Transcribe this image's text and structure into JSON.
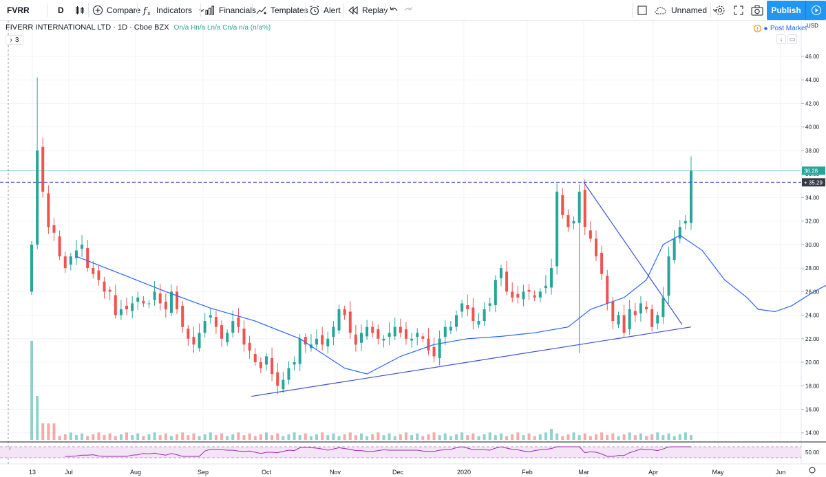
{
  "toolbar": {
    "symbol": "FVRR",
    "interval": "D",
    "compare_label": "Compare",
    "indicators_label": "Indicators",
    "financials_label": "Financials",
    "templates_label": "Templates",
    "alert_label": "Alert",
    "replay_label": "Replay",
    "layout_name": "Unnamed",
    "publish_label": "Publish"
  },
  "legend": {
    "title": "FIVERR INTERNATIONAL LTD · 1D · Cboe BZX",
    "ohlc": "On/a  Hn/a  Ln/a  Cn/a  n/a (n/a%)",
    "collapsed_count": "3",
    "post_market": "Post Market"
  },
  "colors": {
    "up": "#26a69a",
    "down": "#ef5350",
    "ma": "#2962ff",
    "trendline": "#3f51d6",
    "rsi": "#9c27b0",
    "rsi_band": "#f3e5f5"
  },
  "chart_data": {
    "type": "candlestick",
    "y_unit": "USD",
    "y_ticks": [
      14,
      16,
      18,
      20,
      22,
      24,
      26,
      28,
      30,
      32,
      34,
      36,
      38,
      40,
      42,
      44,
      46
    ],
    "ylim": [
      13.4,
      47.4
    ],
    "x_labels": [
      "13",
      "Jul",
      "Aug",
      "Sep",
      "Oct",
      "Nov",
      "Dec",
      "2020",
      "Feb",
      "Mar",
      "Apr",
      "May",
      "Jun"
    ],
    "last_price": "36.28",
    "crosshair_price": "35.29",
    "rsi_label": "50.00",
    "close_series": [
      30.0,
      38.0,
      34.5,
      31.5,
      31.0,
      29.0,
      28.0,
      29.0,
      29.5,
      30.0,
      28.0,
      27.5,
      27.0,
      26.0,
      26.0,
      24.0,
      24.5,
      24.5,
      25.0,
      25.5,
      25.0,
      25.0,
      26.0,
      25.0,
      24.5,
      26.0,
      24.5,
      23.0,
      22.0,
      21.5,
      22.5,
      23.5,
      24.0,
      23.0,
      22.0,
      22.5,
      23.5,
      23.0,
      21.5,
      21.0,
      20.0,
      19.5,
      20.5,
      19.0,
      18.0,
      18.5,
      19.5,
      20.0,
      22.0,
      21.5,
      21.5,
      22.0,
      21.5,
      22.0,
      23.0,
      24.5,
      24.0,
      22.5,
      21.5,
      22.5,
      23.0,
      22.5,
      22.0,
      22.0,
      22.5,
      23.0,
      22.5,
      22.0,
      22.0,
      22.5,
      22.0,
      21.0,
      20.5,
      22.0,
      23.0,
      23.0,
      24.0,
      25.0,
      24.5,
      23.5,
      23.5,
      24.5,
      25.0,
      27.0,
      28.0,
      26.0,
      25.5,
      25.5,
      26.0,
      26.0,
      25.5,
      26.0,
      26.5,
      28.0,
      34.5,
      32.5,
      31.5,
      32.0,
      34.5,
      31.5,
      30.5,
      29.0,
      27.5,
      25.0,
      23.5,
      24.0,
      22.5,
      24.5,
      24.0,
      25.0,
      24.5,
      23.0,
      24.0,
      25.5,
      29.0,
      30.5,
      31.5,
      32.0,
      36.28
    ],
    "ma_points": [
      [
        8,
        29.0
      ],
      [
        16,
        27.5
      ],
      [
        24,
        26.0
      ],
      [
        32,
        24.6
      ],
      [
        40,
        23.5
      ],
      [
        48,
        22.0
      ],
      [
        56,
        19.5
      ],
      [
        60,
        19.0
      ],
      [
        66,
        20.5
      ],
      [
        72,
        21.5
      ],
      [
        78,
        22.0
      ],
      [
        84,
        22.2
      ],
      [
        90,
        22.5
      ],
      [
        96,
        23.0
      ],
      [
        100,
        24.5
      ],
      [
        106,
        25.5
      ],
      [
        110,
        27.0
      ],
      [
        113,
        30.0
      ],
      [
        116,
        30.8
      ],
      [
        120,
        29.5
      ],
      [
        124,
        27.0
      ],
      [
        128,
        25.5
      ],
      [
        130,
        24.5
      ],
      [
        133,
        24.3
      ],
      [
        136,
        24.8
      ],
      [
        140,
        26.0
      ],
      [
        144,
        27.0
      ]
    ],
    "trendlines": [
      {
        "from": [
          "Sep 24",
          17.1
        ],
        "to": [
          "Apr 17",
          23.0
        ]
      },
      {
        "from": [
          "Feb 24",
          35.3
        ],
        "to": [
          "Apr 14",
          23.2
        ]
      }
    ],
    "horizontal_lines": [
      35.29,
      36.28
    ]
  }
}
